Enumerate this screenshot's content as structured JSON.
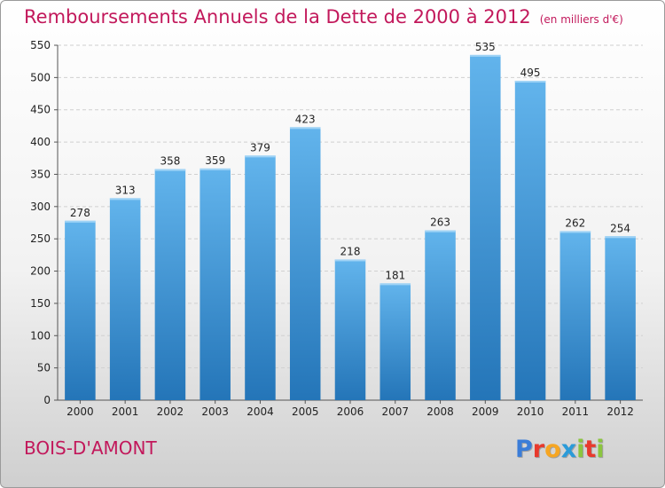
{
  "header": {
    "title": "Remboursements Annuels de la Dette de 2000 à 2012",
    "unit": "(en milliers d'€)"
  },
  "footer": {
    "commune": "BOIS-D'AMONT",
    "logo_letters": [
      "P",
      "r",
      "o",
      "x",
      "i",
      "t",
      "i"
    ],
    "logo_colors": [
      "#3b7dd8",
      "#e8392c",
      "#f6a623",
      "#2b9bd9",
      "#8bc53f",
      "#e8392c",
      "#8bc53f"
    ]
  },
  "colors": {
    "bar_top": "#62b4ec",
    "bar_bottom": "#2475b8",
    "accent": "#c2185b"
  },
  "chart_data": {
    "type": "bar",
    "title": "Remboursements Annuels de la Dette de 2000 à 2012",
    "categories": [
      "2000",
      "2001",
      "2002",
      "2003",
      "2004",
      "2005",
      "2006",
      "2007",
      "2008",
      "2009",
      "2010",
      "2011",
      "2012"
    ],
    "values": [
      278,
      313,
      358,
      359,
      379,
      423,
      218,
      181,
      263,
      535,
      495,
      262,
      254
    ],
    "ylim": [
      0,
      550
    ],
    "yticks": [
      0,
      50,
      100,
      150,
      200,
      250,
      300,
      350,
      400,
      450,
      500,
      550
    ],
    "grid": true,
    "legend": "none"
  }
}
